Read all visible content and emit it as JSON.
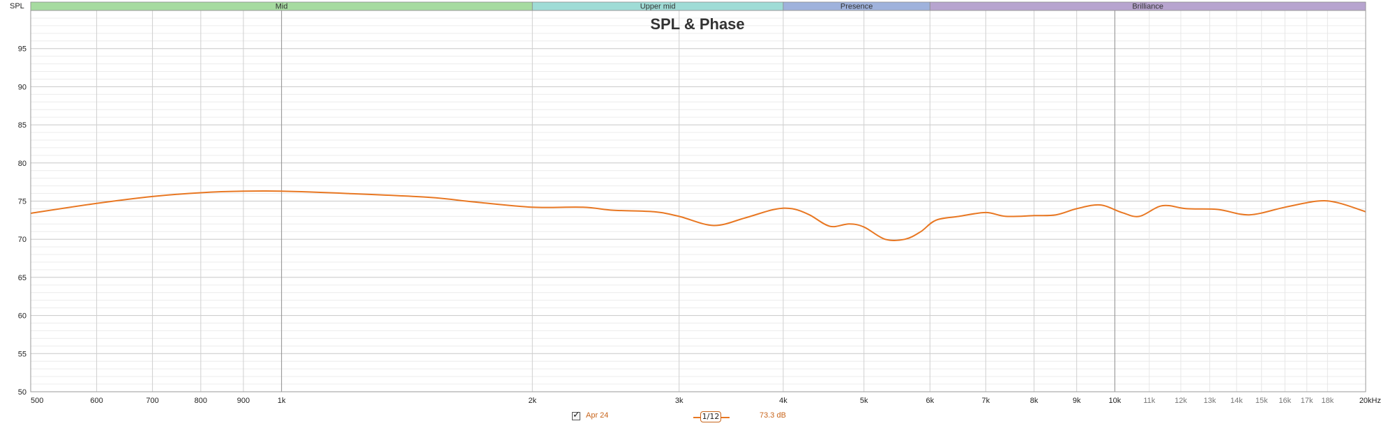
{
  "chart_data": {
    "type": "line",
    "title": "SPL & Phase",
    "ylabel": "SPL",
    "x_unit": "kHz",
    "x_scale": "log",
    "xlim": [
      500,
      20000
    ],
    "ylim": [
      50,
      100
    ],
    "y_ticks": [
      50,
      55,
      60,
      65,
      70,
      75,
      80,
      85,
      90,
      95
    ],
    "x_ticks": [
      {
        "value": 500,
        "label": "500",
        "major": true
      },
      {
        "value": 600,
        "label": "600",
        "major": true
      },
      {
        "value": 700,
        "label": "700",
        "major": true
      },
      {
        "value": 800,
        "label": "800",
        "major": true
      },
      {
        "value": 900,
        "label": "900",
        "major": true
      },
      {
        "value": 1000,
        "label": "1k",
        "major": true
      },
      {
        "value": 2000,
        "label": "2k",
        "major": true
      },
      {
        "value": 3000,
        "label": "3k",
        "major": true
      },
      {
        "value": 4000,
        "label": "4k",
        "major": true
      },
      {
        "value": 5000,
        "label": "5k",
        "major": true
      },
      {
        "value": 6000,
        "label": "6k",
        "major": true
      },
      {
        "value": 7000,
        "label": "7k",
        "major": true
      },
      {
        "value": 8000,
        "label": "8k",
        "major": true
      },
      {
        "value": 9000,
        "label": "9k",
        "major": true
      },
      {
        "value": 10000,
        "label": "10k",
        "major": true
      },
      {
        "value": 11000,
        "label": "11k",
        "major": false
      },
      {
        "value": 12000,
        "label": "12k",
        "major": false
      },
      {
        "value": 13000,
        "label": "13k",
        "major": false
      },
      {
        "value": 14000,
        "label": "14k",
        "major": false
      },
      {
        "value": 15000,
        "label": "15k",
        "major": false
      },
      {
        "value": 16000,
        "label": "16k",
        "major": false
      },
      {
        "value": 17000,
        "label": "17k",
        "major": false
      },
      {
        "value": 18000,
        "label": "18k",
        "major": false
      },
      {
        "value": 20000,
        "label": "20kHz",
        "major": true
      }
    ],
    "bands": [
      {
        "label": "Mid",
        "from": 500,
        "to": 2000,
        "color": "#a6dba0"
      },
      {
        "label": "Upper mid",
        "from": 2000,
        "to": 4000,
        "color": "#9fdcd6"
      },
      {
        "label": "Presence",
        "from": 4000,
        "to": 6000,
        "color": "#9fb2dc"
      },
      {
        "label": "Brilliance",
        "from": 6000,
        "to": 20000,
        "color": "#b7a4cf"
      }
    ],
    "grid": true,
    "series": [
      {
        "name": "Apr 24",
        "color": "#e87722",
        "points": [
          [
            500,
            73.4
          ],
          [
            600,
            74.7
          ],
          [
            700,
            75.6
          ],
          [
            800,
            76.1
          ],
          [
            900,
            76.3
          ],
          [
            1000,
            76.3
          ],
          [
            1200,
            76.0
          ],
          [
            1500,
            75.5
          ],
          [
            1700,
            74.9
          ],
          [
            2000,
            74.2
          ],
          [
            2300,
            74.2
          ],
          [
            2500,
            73.8
          ],
          [
            2800,
            73.6
          ],
          [
            3000,
            73.0
          ],
          [
            3300,
            71.8
          ],
          [
            3600,
            72.8
          ],
          [
            3900,
            73.9
          ],
          [
            4100,
            74.0
          ],
          [
            4300,
            73.2
          ],
          [
            4550,
            71.7
          ],
          [
            4800,
            72.0
          ],
          [
            5000,
            71.6
          ],
          [
            5300,
            70.0
          ],
          [
            5600,
            70.0
          ],
          [
            5850,
            71.0
          ],
          [
            6100,
            72.5
          ],
          [
            6500,
            73.0
          ],
          [
            7000,
            73.5
          ],
          [
            7400,
            73.0
          ],
          [
            8000,
            73.1
          ],
          [
            8500,
            73.2
          ],
          [
            9000,
            74.0
          ],
          [
            9600,
            74.5
          ],
          [
            10200,
            73.5
          ],
          [
            10700,
            73.0
          ],
          [
            11400,
            74.4
          ],
          [
            12200,
            74.0
          ],
          [
            13300,
            73.9
          ],
          [
            14500,
            73.2
          ],
          [
            16000,
            74.2
          ],
          [
            17500,
            75.0
          ],
          [
            18500,
            74.8
          ],
          [
            20000,
            73.6
          ]
        ]
      }
    ]
  },
  "legend": {
    "series_label": "Apr 24",
    "smoothing": "1/12",
    "level": "73.3 dB",
    "checked": true
  }
}
